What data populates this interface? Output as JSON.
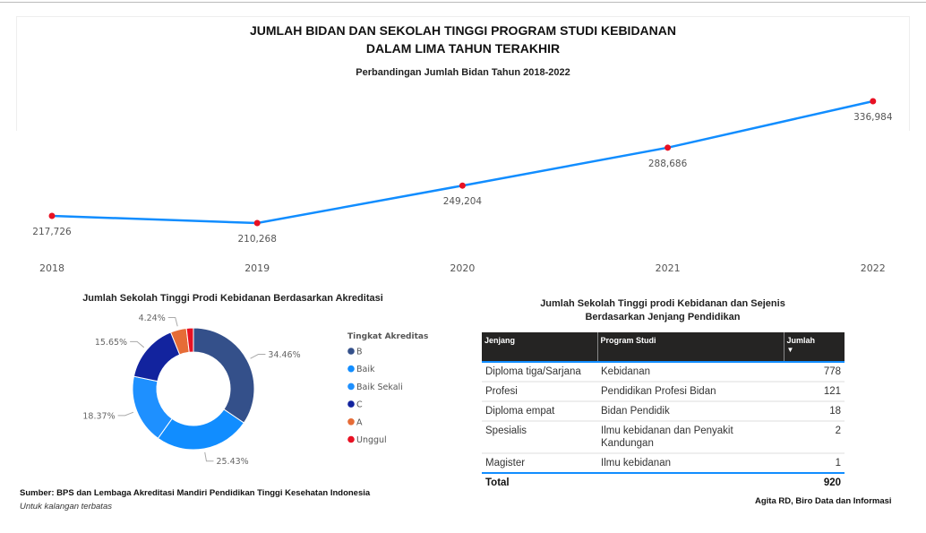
{
  "title_line1": "JUMLAH BIDAN DAN SEKOLAH TINGGI PROGRAM STUDI KEBIDANAN",
  "title_line2": "DALAM LIMA TAHUN TERAKHIR",
  "chart_data": [
    {
      "type": "line",
      "title": "Perbandingan Jumlah Bidan Tahun 2018-2022",
      "x": [
        "2018",
        "2019",
        "2020",
        "2021",
        "2022"
      ],
      "values": [
        217726,
        210268,
        249204,
        288686,
        336984
      ],
      "labels": [
        "217,726",
        "210,268",
        "249,204",
        "288,686",
        "336,984"
      ],
      "color": "#118dff",
      "marker_color": "#e81123",
      "grid": false
    },
    {
      "type": "pie",
      "variant": "donut",
      "title": "Jumlah Sekolah Tinggi Prodi Kebidanan Berdasarkan Akreditasi",
      "legend_title": "Tingkat Akreditas",
      "legend_position": "right",
      "slices": [
        {
          "name": "B",
          "value": 34.46,
          "label": "34.46%",
          "color": "#34508a"
        },
        {
          "name": "Baik",
          "value": 25.43,
          "label": "25.43%",
          "color": "#118dff"
        },
        {
          "name": "Baik Sekali",
          "value": 18.37,
          "label": "18.37%",
          "color": "#1e90ff"
        },
        {
          "name": "C",
          "value": 15.65,
          "label": "15.65%",
          "color": "#12239e"
        },
        {
          "name": "A",
          "value": 4.24,
          "label": "4.24%",
          "color": "#e66c37"
        },
        {
          "name": "Unggul",
          "value": 1.85,
          "label": "",
          "color": "#e81123"
        }
      ]
    }
  ],
  "table": {
    "title_line1": "Jumlah Sekolah Tinggi prodi Kebidanan dan Sejenis",
    "title_line2": "Berdasarkan Jenjang Pendidikan",
    "headers": [
      "Jenjang",
      "Program Studi",
      "Jumlah"
    ],
    "rows": [
      [
        "Diploma tiga/Sarjana",
        "Kebidanan",
        "778"
      ],
      [
        "Profesi",
        "Pendidikan Profesi Bidan",
        "121"
      ],
      [
        "Diploma empat",
        "Bidan Pendidik",
        "18"
      ],
      [
        "Spesialis",
        "Ilmu kebidanan dan Penyakit Kandungan",
        "2"
      ],
      [
        "Magister",
        "Ilmu kebidanan",
        "1"
      ]
    ],
    "total": [
      "Total",
      "",
      "920"
    ]
  },
  "footer": {
    "source": "Sumber: BPS dan Lembaga Akreditasi Mandiri Pendidikan Tinggi Kesehatan Indonesia",
    "note": "Untuk kalangan terbatas",
    "author": "Agita RD, Biro Data dan Informasi"
  }
}
